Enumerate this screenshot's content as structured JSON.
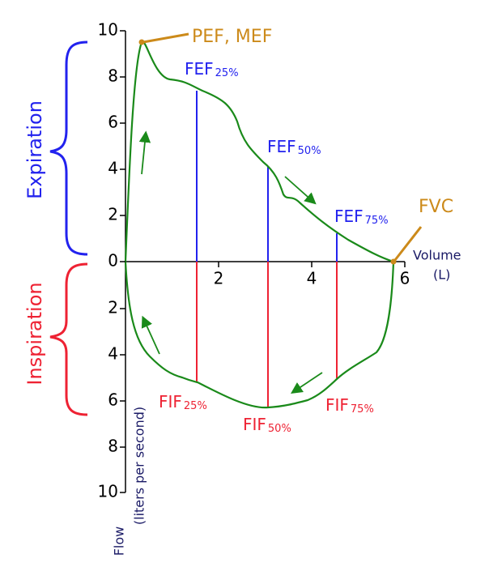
{
  "y_axis": {
    "ticks_upper": [
      "10",
      "8",
      "6",
      "4",
      "2",
      "0"
    ],
    "ticks_lower": [
      "2",
      "4",
      "6",
      "8",
      "10"
    ],
    "label": "Flow",
    "unit": "(liters per second)"
  },
  "x_axis": {
    "ticks": [
      "2",
      "4",
      "6"
    ],
    "label": "Volume",
    "unit": "(L)"
  },
  "phases": {
    "expiration": "Expiration",
    "inspiration": "Inspiration"
  },
  "annotations": {
    "peak": "PEF, MEF",
    "fvc": "FVC",
    "fef": [
      {
        "name": "FEF",
        "sub": "25%"
      },
      {
        "name": "FEF",
        "sub": "50%"
      },
      {
        "name": "FEF",
        "sub": "75%"
      }
    ],
    "fif": [
      {
        "name": "FIF",
        "sub": "25%"
      },
      {
        "name": "FIF",
        "sub": "50%"
      },
      {
        "name": "FIF",
        "sub": "75%"
      }
    ]
  }
}
